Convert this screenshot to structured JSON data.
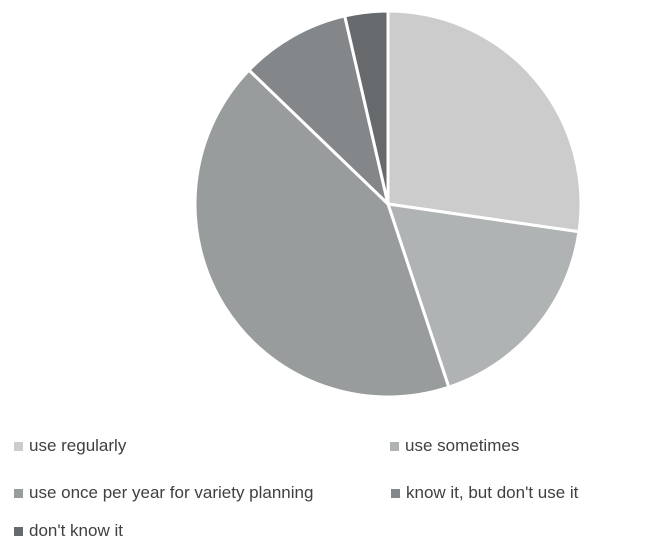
{
  "chart_data": {
    "type": "pie",
    "title": "",
    "start_angle_deg": 0,
    "direction": "clockwise",
    "legend_position": "bottom",
    "slices": [
      {
        "label": "use regularly",
        "value": 27.3,
        "color": "#cbcccb"
      },
      {
        "label": "use sometimes",
        "value": 17.6,
        "color": "#b0b3b3"
      },
      {
        "label": "use once per year for variety planning",
        "value": 42.3,
        "color": "#999c9c"
      },
      {
        "label": "know it, but don't use it",
        "value": 9.2,
        "color": "#83878a"
      },
      {
        "label": "don't know it",
        "value": 3.6,
        "color": "#666a6d"
      }
    ]
  }
}
